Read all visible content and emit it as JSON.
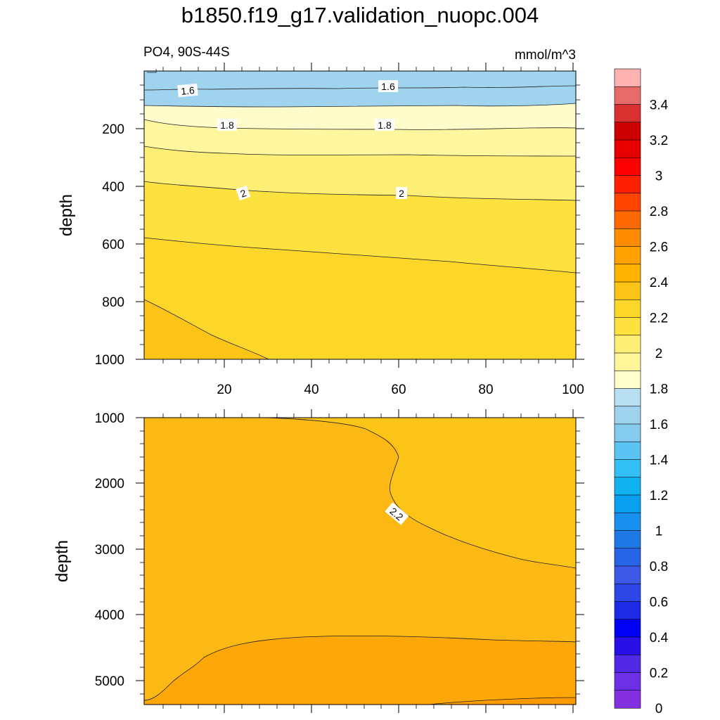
{
  "title": "b1850.f19_g17.validation_nuopc.004",
  "subtitle_left": "PO4, 90S-44S",
  "subtitle_right": "mmol/m^3",
  "chart_data": [
    {
      "type": "contour",
      "panel": "upper",
      "title": "PO4, 90S-44S",
      "units": "mmol/m^3",
      "xlabel": "",
      "ylabel": "depth",
      "xlim": [
        1,
        101
      ],
      "ylim": [
        1000,
        0
      ],
      "xticks": [
        20,
        40,
        60,
        80,
        100
      ],
      "yticks": [
        200,
        400,
        600,
        800,
        1000
      ],
      "contour_labels": [
        {
          "text": "1.6",
          "x": 13,
          "depth": 68
        },
        {
          "text": "1.6",
          "x": 56,
          "depth": 55
        },
        {
          "text": "1.8",
          "x": 21,
          "depth": 192
        },
        {
          "text": "1.8",
          "x": 56,
          "depth": 192
        },
        {
          "text": "2",
          "x": 24,
          "depth": 425
        },
        {
          "text": "2",
          "x": 61,
          "depth": 425
        }
      ],
      "levels": [
        {
          "lower": 1.5,
          "depth_at_x": [
            [
              1,
              30
            ],
            [
              101,
              30
            ]
          ]
        },
        {
          "lower": 1.6,
          "depth_at_x": [
            [
              1,
              118
            ],
            [
              101,
              112
            ]
          ]
        },
        {
          "lower": 1.7,
          "depth_at_x": [
            [
              1,
              160
            ],
            [
              101,
              165
            ]
          ]
        },
        {
          "lower": 1.8,
          "depth_at_x": [
            [
              1,
              275
            ],
            [
              101,
              290
            ]
          ]
        },
        {
          "lower": 1.9,
          "depth_at_x": [
            [
              1,
              390
            ],
            [
              101,
              450
            ]
          ]
        },
        {
          "lower": 2.0,
          "depth_at_x": [
            [
              1,
              595
            ],
            [
              101,
              705
            ]
          ]
        },
        {
          "lower": 2.1,
          "depth_at_x": [
            [
              1,
              800
            ],
            [
              30,
              1000
            ]
          ]
        }
      ]
    },
    {
      "type": "contour",
      "panel": "lower",
      "xlabel": "",
      "ylabel": "depth",
      "xlim": [
        1,
        101
      ],
      "ylim": [
        5375,
        1000
      ],
      "yticks": [
        1000,
        2000,
        3000,
        4000,
        5000
      ],
      "contour_labels": [
        {
          "text": "2.2",
          "x": 60,
          "depth": 2450
        }
      ],
      "levels": [
        {
          "lower": 2.1,
          "description": "region right of 2.2 contour"
        },
        {
          "lower": 2.2,
          "description": "main body"
        },
        {
          "lower": 2.3,
          "depth_at_x": [
            [
              5,
              5375
            ],
            [
              50,
              4350
            ],
            [
              101,
              4420
            ]
          ]
        },
        {
          "lower": 2.4,
          "depth_at_x": [
            [
              65,
              5375
            ],
            [
              101,
              5260
            ]
          ]
        }
      ]
    }
  ],
  "colorbar": {
    "labels": [
      "3.4",
      "3.2",
      "3",
      "2.8",
      "2.6",
      "2.4",
      "2.2",
      "2",
      "1.8",
      "1.6",
      "1.4",
      "1.2",
      "1",
      "0.8",
      "0.6",
      "0.4",
      "0.2",
      "0"
    ],
    "colors_top_to_bottom": [
      "#ffb3b3",
      "#e86b6b",
      "#d93030",
      "#cc0000",
      "#e60000",
      "#ff0000",
      "#ff2000",
      "#ff4500",
      "#ff6a00",
      "#ff8c00",
      "#ffa200",
      "#ffb400",
      "#fdc418",
      "#fdd62a",
      "#fde23f",
      "#fdee75",
      "#fff59a",
      "#ffffcc",
      "#b8e0f2",
      "#a0d4ee",
      "#86cbee",
      "#5cc4f2",
      "#33c0f5",
      "#10b2f0",
      "#0aa0f0",
      "#1890f0",
      "#1e78e6",
      "#2864e6",
      "#3c5ae6",
      "#2d46e6",
      "#1e2ae6",
      "#0000f5",
      "#2810e6",
      "#5028e6",
      "#6c30e6",
      "#8430e0"
    ]
  },
  "colors": {
    "c_1_5": "#a0d4ee",
    "c_1_6": "#fdf5b6",
    "c_1_7": "#fff7a0",
    "c_1_8": "#fdee75",
    "c_1_9": "#fde23f",
    "c_2_0": "#fdd62a",
    "c_2_1": "#fdc418",
    "c_2_2": "#fcb814",
    "c_2_3": "#fda808",
    "c_2_4": "#fd9a00"
  }
}
